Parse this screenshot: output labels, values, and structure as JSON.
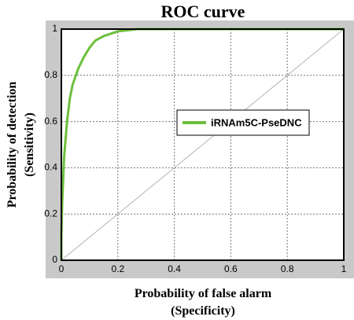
{
  "chart_data": {
    "type": "line",
    "title": "ROC curve",
    "xlabel": [
      "Probability of false alarm",
      "(Specificity)"
    ],
    "ylabel": [
      "Probability of detection",
      "(Sensitivity)"
    ],
    "x": [
      0,
      0,
      0.003,
      0.01,
      0.02,
      0.03,
      0.04,
      0.06,
      0.08,
      0.1,
      0.12,
      0.15,
      0.2,
      0.27,
      1
    ],
    "series": [
      {
        "name": "iRNAm5C-PseDNC",
        "color": "#6cbf3c",
        "values": [
          0,
          0.1,
          0.25,
          0.45,
          0.6,
          0.7,
          0.76,
          0.83,
          0.88,
          0.92,
          0.95,
          0.97,
          0.99,
          1,
          1
        ]
      }
    ],
    "xlim": [
      0,
      1
    ],
    "ylim": [
      0,
      1
    ],
    "xticks": [
      0,
      0.2,
      0.4,
      0.6,
      0.8,
      1
    ],
    "yticks": [
      0,
      0.2,
      0.4,
      0.6,
      0.8,
      1
    ],
    "grid": true,
    "legend": "center right"
  }
}
